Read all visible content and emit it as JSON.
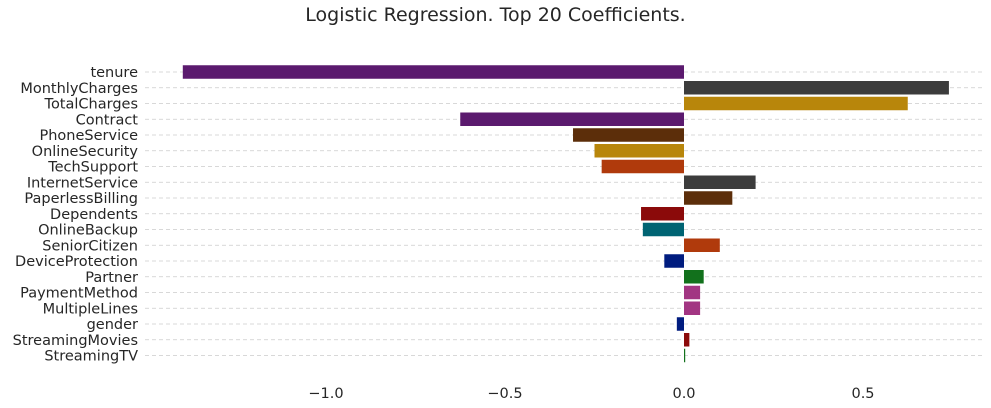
{
  "chart_data": {
    "type": "bar",
    "orientation": "horizontal",
    "title": "Logistic Regression. Top 20 Coefficients.",
    "xlabel": "",
    "ylabel": "",
    "xlim": [
      -1.52,
      0.85
    ],
    "xticks": [
      -1.0,
      -0.5,
      0.0,
      0.5
    ],
    "xtick_labels": [
      "−1.0",
      "−0.5",
      "0.0",
      "0.5"
    ],
    "grid": "horizontal dashed",
    "categories": [
      "tenure",
      "MonthlyCharges",
      "TotalCharges",
      "Contract",
      "PhoneService",
      "OnlineSecurity",
      "TechSupport",
      "InternetService",
      "PaperlessBilling",
      "Dependents",
      "OnlineBackup",
      "SeniorCitizen",
      "DeviceProtection",
      "Partner",
      "PaymentMethod",
      "MultipleLines",
      "gender",
      "StreamingMovies",
      "StreamingTV"
    ],
    "values": [
      -1.4,
      0.74,
      0.625,
      -0.625,
      -0.31,
      -0.25,
      -0.23,
      0.2,
      0.135,
      -0.12,
      -0.115,
      0.1,
      -0.055,
      0.055,
      0.045,
      0.045,
      -0.02,
      0.015,
      0.003
    ],
    "colors": [
      "#5b1a6e",
      "#3c3c3c",
      "#b8860b",
      "#5b1a6e",
      "#5c2e0a",
      "#b8860b",
      "#b03a0c",
      "#3c3c3c",
      "#5c2e0a",
      "#8b0a0a",
      "#006473",
      "#b03a0c",
      "#001c7f",
      "#12711c",
      "#a23582",
      "#a23582",
      "#001c7f",
      "#8b0a0a",
      "#12711c"
    ]
  }
}
